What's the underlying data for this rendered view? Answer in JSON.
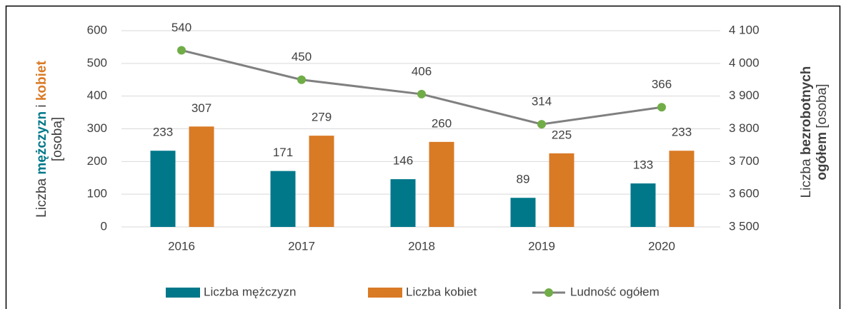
{
  "chart_data": {
    "type": "bar",
    "categories": [
      "2016",
      "2017",
      "2018",
      "2019",
      "2020"
    ],
    "series": [
      {
        "name": "Liczba mężczyzn",
        "type": "bar",
        "color": "#00788a",
        "values": [
          233,
          171,
          146,
          89,
          133
        ]
      },
      {
        "name": "Liczba kobiet",
        "type": "bar",
        "color": "#d97a25",
        "values": [
          307,
          279,
          260,
          225,
          233
        ]
      },
      {
        "name": "Ludność ogółem",
        "type": "line",
        "color": "#808080",
        "marker_color": "#70ad47",
        "values": [
          540,
          450,
          406,
          314,
          366
        ]
      }
    ],
    "y_label": [
      {
        "text": "Liczba "
      },
      {
        "text": "mężczyzn",
        "color": "#00788a",
        "bold": true
      },
      {
        "text": " i "
      },
      {
        "text": "kobiet",
        "color": "#d97a25",
        "bold": true
      },
      {
        "text": "[osoba]",
        "line": 2
      }
    ],
    "y2_label": [
      {
        "text": "Liczba "
      },
      {
        "text": "bezrobotnych",
        "bold": true
      },
      {
        "text": "ogółem",
        "bold": true,
        "line": 2
      },
      {
        "text": " [osoba]",
        "line": 2
      }
    ],
    "ylim": [
      0,
      600
    ],
    "yticks": [
      0,
      100,
      200,
      300,
      400,
      500,
      600
    ],
    "y2lim": [
      3500,
      4100
    ],
    "y2ticks": [
      {
        "value": 3500,
        "label": "3 500"
      },
      {
        "value": 3600,
        "label": "3 600"
      },
      {
        "value": 3700,
        "label": "3 700"
      },
      {
        "value": 3800,
        "label": "3 800"
      },
      {
        "value": 3900,
        "label": "3 900"
      },
      {
        "value": 4000,
        "label": "4 000"
      },
      {
        "value": 4100,
        "label": "4 100"
      }
    ],
    "grid": true,
    "legend": "bottom"
  }
}
